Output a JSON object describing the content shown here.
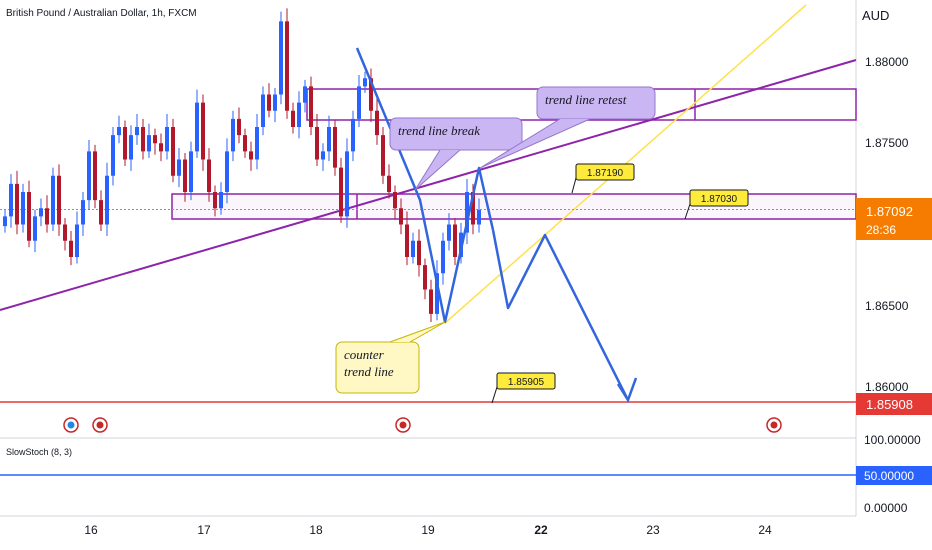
{
  "header": {
    "symbol_title": "British Pound / Australian Dollar, 1h, FXCM",
    "currency": "AUD"
  },
  "price_axis": {
    "ticks": [
      "1.88000",
      "1.87500",
      "1.86500",
      "1.86000"
    ],
    "current_price": "1.87092",
    "countdown": "28:36",
    "support_price": "1.85908"
  },
  "oscillator": {
    "name": "SlowStoch (8, 3)",
    "ticks": [
      "100.00000",
      "50.00000",
      "0.00000"
    ]
  },
  "time_axis": {
    "labels": [
      "16",
      "17",
      "18",
      "19",
      "22",
      "23",
      "24"
    ]
  },
  "annotations": {
    "callout_break": "trend line break",
    "callout_retest": "trend line retest",
    "callout_counter": [
      "counter",
      "trend line"
    ],
    "price_labels": [
      "1.87190",
      "1.87030",
      "1.85905"
    ]
  },
  "colors": {
    "up": "#2962ff",
    "down": "#b2182b",
    "purple": "#8e24aa",
    "projection": "#3366dd",
    "yellow_line": "#ffe14d",
    "support": "#e53935",
    "current": "#f57c00"
  },
  "chart_data": {
    "type": "candlestick",
    "timeframe": "1h",
    "ylim": [
      1.855,
      1.886
    ],
    "x_labels": [
      "16",
      "17",
      "18",
      "19",
      "22",
      "23",
      "24"
    ],
    "current_price": 1.87092,
    "levels": {
      "upper_zone": [
        1.8764,
        1.8783
      ],
      "middle_zone": [
        1.8703,
        1.8719
      ],
      "support": 1.85908
    },
    "close_path": [
      1.8705,
      1.8725,
      1.87,
      1.872,
      1.869,
      1.8705,
      1.871,
      1.87,
      1.873,
      1.87,
      1.869,
      1.868,
      1.87,
      1.8715,
      1.8745,
      1.8715,
      1.87,
      1.873,
      1.8755,
      1.876,
      1.874,
      1.8755,
      1.876,
      1.8745,
      1.8755,
      1.875,
      1.8745,
      1.876,
      1.873,
      1.874,
      1.872,
      1.8745,
      1.8775,
      1.874,
      1.872,
      1.871,
      1.872,
      1.8745,
      1.8765,
      1.8755,
      1.8745,
      1.874,
      1.876,
      1.878,
      1.877,
      1.878,
      1.8825,
      1.877,
      1.876,
      1.8775,
      1.8785,
      1.876,
      1.874,
      1.8745,
      1.876,
      1.8735,
      1.8705,
      1.8745,
      1.8765,
      1.8785,
      1.879,
      1.877,
      1.8755,
      1.873,
      1.872,
      1.871,
      1.87,
      1.868,
      1.869,
      1.8675,
      1.866,
      1.8645,
      1.867,
      1.869,
      1.87,
      1.868,
      1.8695,
      1.872,
      1.87,
      1.8709
    ],
    "projection": [
      {
        "x": "19",
        "y": 1.8642
      },
      {
        "x": "19",
        "y": 1.8734
      },
      {
        "x": "19",
        "y": 1.865
      },
      {
        "x": "22",
        "y": 1.869
      },
      {
        "x": "22",
        "y": 1.8592
      }
    ],
    "oscillator": {
      "name": "SlowStoch (8, 3)",
      "ylim": [
        0,
        100
      ],
      "level": 50
    }
  }
}
